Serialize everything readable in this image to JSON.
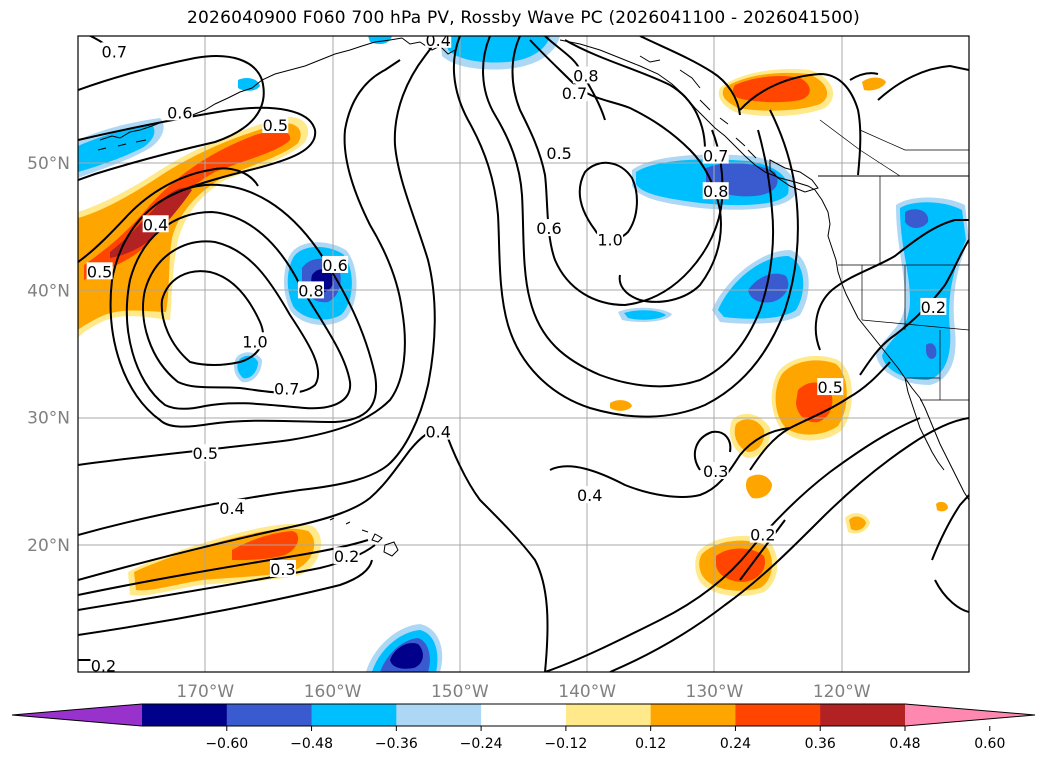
{
  "title": "2026040900 F060 700 hPa PV, Rossby Wave PC (2026041100 - 2026041500)",
  "map": {
    "lon_range": [
      -180,
      -110
    ],
    "lat_range": [
      10,
      60
    ],
    "lat_ticks": [
      {
        "value": 50,
        "label": "50°N"
      },
      {
        "value": 40,
        "label": "40°N"
      },
      {
        "value": 30,
        "label": "30°N"
      },
      {
        "value": 20,
        "label": "20°N"
      }
    ],
    "lon_ticks": [
      {
        "value": -170,
        "label": "170°W"
      },
      {
        "value": -160,
        "label": "160°W"
      },
      {
        "value": -150,
        "label": "150°W"
      },
      {
        "value": -140,
        "label": "140°W"
      },
      {
        "value": -130,
        "label": "130°W"
      },
      {
        "value": -120,
        "label": "120°W"
      }
    ],
    "grid": true,
    "contour_labels": [
      {
        "text": "0.7",
        "lon": -177.15,
        "lat": 58.8
      },
      {
        "text": "0.6",
        "lon": -172.0,
        "lat": 54.0
      },
      {
        "text": "0.5",
        "lon": -164.5,
        "lat": 53.0
      },
      {
        "text": "0.4",
        "lon": -173.9,
        "lat": 45.2
      },
      {
        "text": "0.5",
        "lon": -178.3,
        "lat": 41.5
      },
      {
        "text": "0.6",
        "lon": -159.8,
        "lat": 42.0
      },
      {
        "text": "0.8",
        "lon": -161.7,
        "lat": 40.0
      },
      {
        "text": "1.0",
        "lon": -166.1,
        "lat": 36.0
      },
      {
        "text": "0.7",
        "lon": -163.6,
        "lat": 32.3
      },
      {
        "text": "0.5",
        "lon": -170.0,
        "lat": 27.2
      },
      {
        "text": "0.4",
        "lon": -167.9,
        "lat": 22.9
      },
      {
        "text": "0.3",
        "lon": -163.9,
        "lat": 18.1
      },
      {
        "text": "0.2",
        "lon": -158.9,
        "lat": 19.1
      },
      {
        "text": "0.2",
        "lon": -178.0,
        "lat": 10.5
      },
      {
        "text": "0.4",
        "lon": -151.7,
        "lat": 28.9
      },
      {
        "text": "0.4",
        "lon": -139.8,
        "lat": 23.9
      },
      {
        "text": "0.5",
        "lon": -142.2,
        "lat": 50.8
      },
      {
        "text": "0.6",
        "lon": -143.0,
        "lat": 44.9
      },
      {
        "text": "0.8",
        "lon": -140.1,
        "lat": 56.9
      },
      {
        "text": "0.7",
        "lon": -141.0,
        "lat": 55.5
      },
      {
        "text": "1.0",
        "lon": -138.2,
        "lat": 44.0
      },
      {
        "text": "0.7",
        "lon": -129.9,
        "lat": 50.6
      },
      {
        "text": "0.8",
        "lon": -129.9,
        "lat": 47.8
      },
      {
        "text": "0.4",
        "lon": -151.7,
        "lat": 59.7
      },
      {
        "text": "0.3",
        "lon": -129.9,
        "lat": 25.8
      },
      {
        "text": "0.5",
        "lon": -120.9,
        "lat": 32.4
      },
      {
        "text": "0.2",
        "lon": -126.2,
        "lat": 20.8
      },
      {
        "text": "0.2",
        "lon": -112.8,
        "lat": 38.7
      }
    ]
  },
  "colorbar": {
    "ticks": [
      "−0.60",
      "−0.48",
      "−0.36",
      "−0.24",
      "−0.12",
      "0.12",
      "0.24",
      "0.36",
      "0.48",
      "0.60"
    ],
    "colors": [
      "#9932cc",
      "#00008b",
      "#3a5bd0",
      "#00bfff",
      "#add8f5",
      "#ffffff",
      "#ffe98a",
      "#ffa500",
      "#ff4500",
      "#b22222",
      "#ff88b0"
    ]
  }
}
